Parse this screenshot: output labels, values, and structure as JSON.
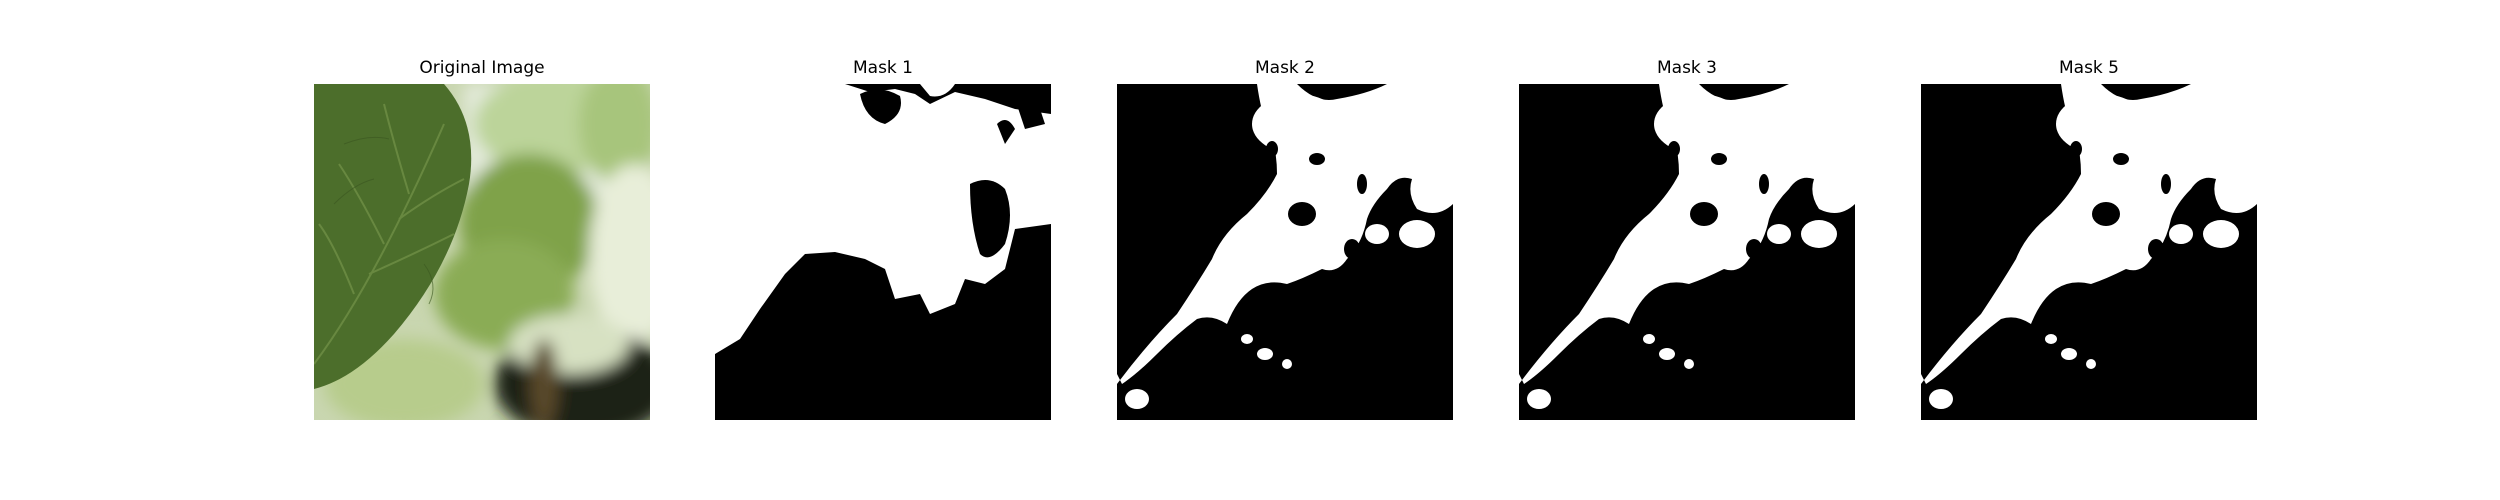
{
  "panels": [
    {
      "title": "Original Image",
      "kind": "photo"
    },
    {
      "title": "Mask 1",
      "kind": "mask"
    },
    {
      "title": "Mask 2",
      "kind": "mask"
    },
    {
      "title": "Mask 3",
      "kind": "mask"
    },
    {
      "title": "Mask 5",
      "kind": "mask"
    }
  ],
  "colors": {
    "mask_foreground": "#ffffff",
    "mask_background": "#000000",
    "leaf_dark": "#4a6b2a",
    "leaf_light": "#9cba6e",
    "shadow": "#1a1f12"
  }
}
